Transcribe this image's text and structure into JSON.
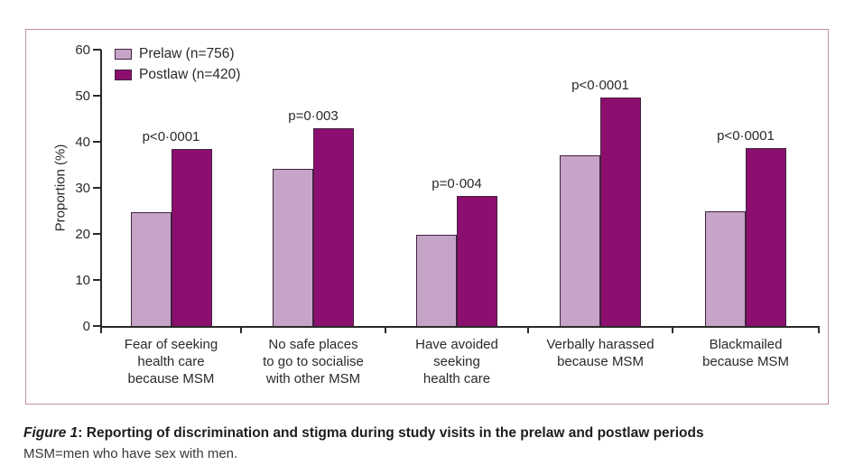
{
  "figure": {
    "caption_label": "Figure 1",
    "caption_separator": ": ",
    "caption_title": "Reporting of discrimination and stigma during study visits in the prelaw and postlaw periods",
    "caption_note": "MSM=men who have sex with men."
  },
  "chart_data": {
    "type": "bar",
    "title": "",
    "xlabel": "",
    "ylabel": "Proportion (%)",
    "ylim": [
      0,
      60
    ],
    "yticks": [
      0,
      10,
      20,
      30,
      40,
      50,
      60
    ],
    "grid": false,
    "legend_position": "top-left-inside",
    "categories": [
      "Fear of seeking\nhealth care\nbecause MSM",
      "No safe places\nto go to socialise\nwith other MSM",
      "Have avoided\nseeking\nhealth care",
      "Verbally harassed\nbecause MSM",
      "Blackmailed\nbecause MSM"
    ],
    "series": [
      {
        "name": "Prelaw (n=756)",
        "color": "#c5a4c7",
        "values": [
          24.8,
          34.1,
          19.8,
          37.0,
          25.0
        ]
      },
      {
        "name": "Postlaw (n=420)",
        "color": "#8c0f70",
        "values": [
          38.4,
          42.9,
          28.3,
          49.6,
          38.7
        ]
      }
    ],
    "p_values": [
      "p<0·0001",
      "p=0·003",
      "p=0·004",
      "p<0·0001",
      "p<0·0001"
    ]
  },
  "colors": {
    "prelaw_bar": "#c5a4c7",
    "postlaw_bar": "#8c0f70",
    "bar_outline": "#41213f",
    "frame_border": "#c18da9",
    "axis": "#2b2a29",
    "text": "#2b2a29"
  }
}
